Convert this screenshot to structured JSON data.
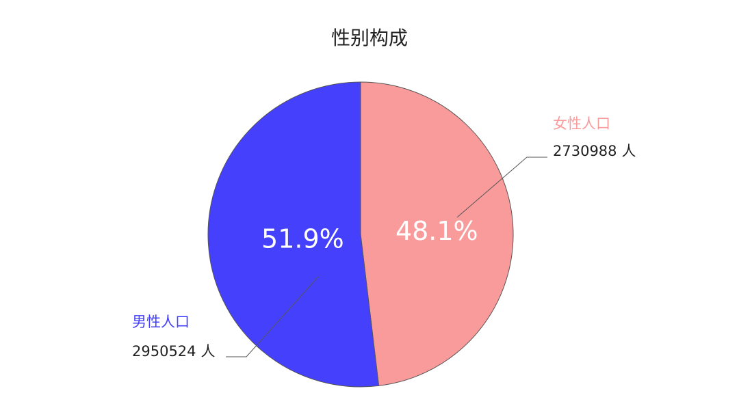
{
  "chart_data": {
    "type": "pie",
    "title": "性别构成",
    "categories": [
      "女性人口",
      "男性人口"
    ],
    "values": [
      48.1,
      51.9
    ],
    "value_labels": [
      "48.1%",
      "51.9%"
    ],
    "counts": [
      2730988,
      2950524
    ],
    "count_unit": "人",
    "colors": [
      "#f99b9b",
      "#4540fb"
    ]
  }
}
